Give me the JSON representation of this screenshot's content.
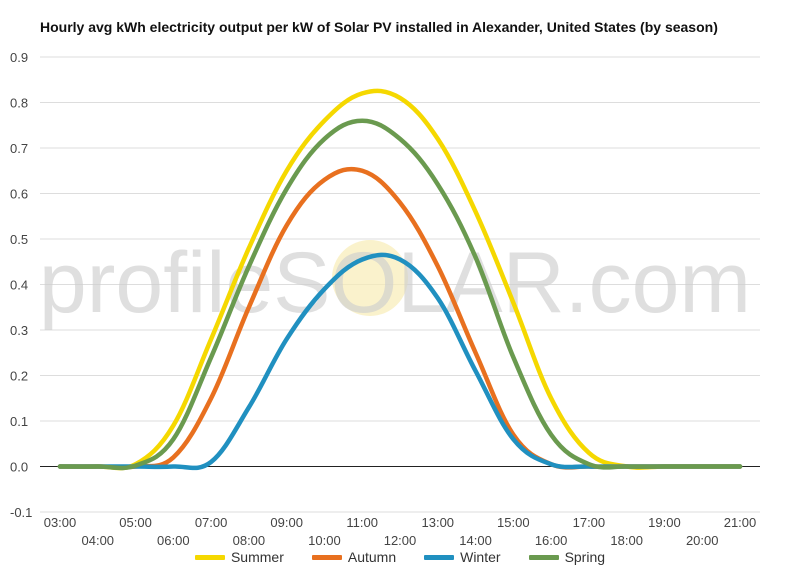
{
  "chart_data": {
    "type": "line",
    "title": "Hourly avg kWh electricity output per kW of Solar PV installed in Alexander, United States (by season)",
    "xlabel": "",
    "ylabel": "",
    "ylim": [
      -0.1,
      0.9
    ],
    "yticks": [
      "-0.1",
      "0.0",
      "0.1",
      "0.2",
      "0.3",
      "0.4",
      "0.5",
      "0.6",
      "0.7",
      "0.8",
      "0.9"
    ],
    "categories": [
      "03:00",
      "04:00",
      "05:00",
      "06:00",
      "07:00",
      "08:00",
      "09:00",
      "10:00",
      "11:00",
      "12:00",
      "13:00",
      "14:00",
      "15:00",
      "16:00",
      "17:00",
      "18:00",
      "19:00",
      "20:00",
      "21:00"
    ],
    "grid": true,
    "legend_position": "bottom",
    "watermark": "profileSOLAR.com",
    "series": [
      {
        "name": "Summer",
        "color": "#f5d800",
        "values": [
          0.0,
          0.0,
          0.005,
          0.09,
          0.28,
          0.48,
          0.65,
          0.76,
          0.82,
          0.81,
          0.72,
          0.56,
          0.36,
          0.15,
          0.03,
          0.0,
          0.0,
          0.0,
          0.0
        ]
      },
      {
        "name": "Autumn",
        "color": "#e8701f",
        "values": [
          0.0,
          0.0,
          0.0,
          0.02,
          0.15,
          0.35,
          0.53,
          0.63,
          0.65,
          0.58,
          0.44,
          0.25,
          0.07,
          0.005,
          0.0,
          0.0,
          0.0,
          0.0,
          0.0
        ]
      },
      {
        "name": "Winter",
        "color": "#2090c0",
        "values": [
          0.0,
          0.0,
          0.0,
          0.0,
          0.01,
          0.13,
          0.28,
          0.39,
          0.455,
          0.455,
          0.37,
          0.21,
          0.06,
          0.005,
          0.0,
          0.0,
          0.0,
          0.0,
          0.0
        ]
      },
      {
        "name": "Spring",
        "color": "#6a9a4f",
        "values": [
          0.0,
          0.0,
          0.002,
          0.06,
          0.24,
          0.44,
          0.61,
          0.72,
          0.76,
          0.72,
          0.62,
          0.46,
          0.24,
          0.07,
          0.005,
          0.0,
          0.0,
          0.0,
          0.0
        ]
      }
    ]
  }
}
